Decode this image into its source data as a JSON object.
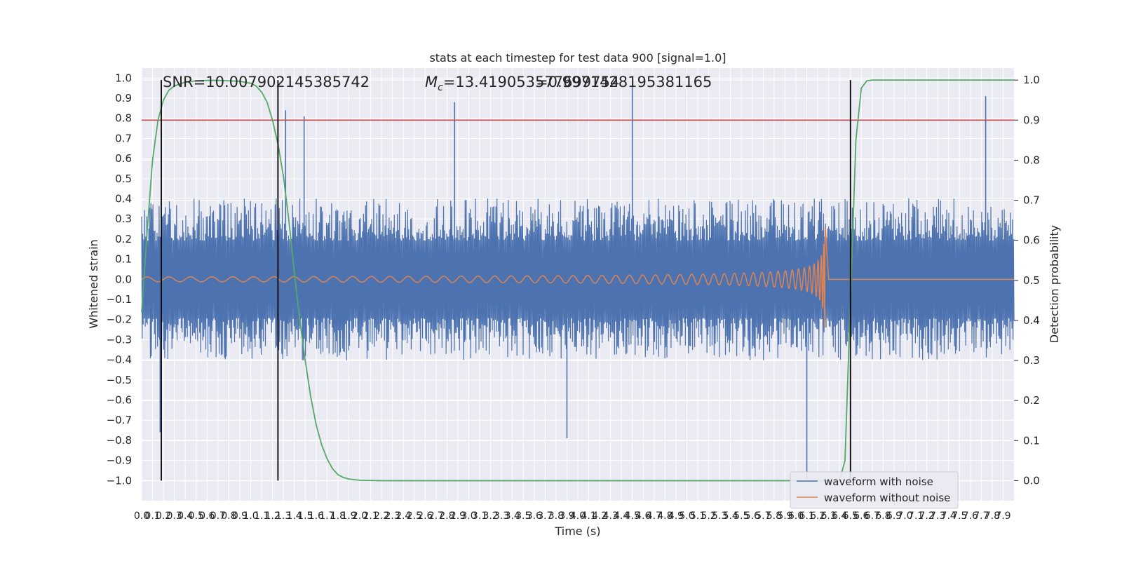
{
  "chart_data": {
    "type": "line",
    "title": "stats at each timestep for test data 900 [signal=1.0]",
    "xlabel": "Time (s)",
    "ylabel": "Whitened strain",
    "y2label": "Detection probability",
    "xlim": [
      0.0,
      8.0
    ],
    "ylim": [
      -1.1,
      1.05
    ],
    "y2lim": [
      -0.05,
      1.03
    ],
    "grid": true,
    "legend_position": "lower-right",
    "annotations": {
      "snr": "SNR=10.007902145385742",
      "mc_symbol": "M",
      "mc_sub": "c",
      "mc_value": "=13.419053577699754",
      "overlap": "=0.9971428195381165"
    },
    "y_ticks": [
      "1.0",
      "0.9",
      "0.8",
      "0.7",
      "0.6",
      "0.5",
      "0.4",
      "0.3",
      "0.2",
      "0.1",
      "0.0",
      "−0.1",
      "−0.2",
      "−0.3",
      "−0.4",
      "−0.5",
      "−0.6",
      "−0.7",
      "−0.8",
      "−0.9",
      "−1.0"
    ],
    "y2_ticks": [
      "1.0",
      "0.9",
      "0.8",
      "0.7",
      "0.6",
      "0.5",
      "0.4",
      "0.3",
      "0.2",
      "0.1",
      "0.0"
    ],
    "x_ticks": [
      "0.0",
      "0.1",
      "0.2",
      "0.3",
      "0.4",
      "0.5",
      "0.6",
      "0.7",
      "0.8",
      "0.9",
      "1.0",
      "1.1",
      "1.2",
      "1.3",
      "1.4",
      "1.5",
      "1.6",
      "1.7",
      "1.8",
      "1.9",
      "2.0",
      "2.1",
      "2.2",
      "2.3",
      "2.4",
      "2.5",
      "2.6",
      "2.7",
      "2.8",
      "2.9",
      "3.0",
      "3.1",
      "3.2",
      "3.3",
      "3.4",
      "3.5",
      "3.6",
      "3.7",
      "3.8",
      "3.9",
      "4.0",
      "4.1",
      "4.2",
      "4.3",
      "4.4",
      "4.5",
      "4.6",
      "4.7",
      "4.8",
      "4.9",
      "5.0",
      "5.1",
      "5.2",
      "5.3",
      "5.4",
      "5.5",
      "5.6",
      "5.7",
      "5.8",
      "5.9",
      "6.0",
      "6.1",
      "6.2",
      "6.3",
      "6.4",
      "6.5",
      "6.6",
      "6.7",
      "6.8",
      "6.9",
      "7.0",
      "7.1",
      "7.2",
      "7.3",
      "7.4",
      "7.5",
      "7.6",
      "7.7",
      "7.8",
      "7.9"
    ],
    "threshold": 0.9,
    "event_markers": [
      0.18,
      1.25,
      6.5
    ],
    "series": [
      {
        "name": "waveform with noise",
        "color": "#4c72b0",
        "noise_envelope": {
          "typical_abs": 0.35,
          "max": 0.96,
          "min": -0.99
        },
        "spikes": [
          {
            "x": 2.87,
            "y": 0.88
          },
          {
            "x": 1.32,
            "y": 0.84
          },
          {
            "x": 1.49,
            "y": 0.81
          },
          {
            "x": 4.5,
            "y": 0.96
          },
          {
            "x": 7.74,
            "y": 0.91
          },
          {
            "x": 6.1,
            "y": -0.99
          },
          {
            "x": 0.17,
            "y": -0.76
          },
          {
            "x": 3.9,
            "y": -0.79
          }
        ]
      },
      {
        "name": "waveform without noise",
        "color": "#dd8452",
        "chirp_peak_time": 6.27,
        "peak_amplitude": 0.44,
        "min_amplitude": -0.33,
        "start_amplitude": 0.012
      },
      {
        "name": "",
        "color": "#55a868",
        "axis": "right",
        "x": [
          0.0,
          0.05,
          0.1,
          0.15,
          0.2,
          0.25,
          0.3,
          0.35,
          0.4,
          0.5,
          0.6,
          0.7,
          0.8,
          0.9,
          1.0,
          1.05,
          1.1,
          1.15,
          1.2,
          1.25,
          1.3,
          1.35,
          1.4,
          1.45,
          1.5,
          1.55,
          1.6,
          1.65,
          1.7,
          1.75,
          1.8,
          1.85,
          1.9,
          2.0,
          2.2,
          3.0,
          4.0,
          5.0,
          6.0,
          6.4,
          6.45,
          6.5,
          6.55,
          6.6,
          6.65,
          6.7,
          7.0,
          8.0
        ],
        "y": [
          0.42,
          0.62,
          0.8,
          0.9,
          0.95,
          0.975,
          0.985,
          0.99,
          0.995,
          0.998,
          0.999,
          0.999,
          0.998,
          0.997,
          0.992,
          0.985,
          0.97,
          0.945,
          0.9,
          0.84,
          0.76,
          0.65,
          0.52,
          0.4,
          0.3,
          0.21,
          0.14,
          0.09,
          0.055,
          0.03,
          0.015,
          0.008,
          0.004,
          0.001,
          0.0,
          0.0,
          0.0,
          0.0,
          0.0,
          0.0,
          0.05,
          0.45,
          0.85,
          0.98,
          0.998,
          1.0,
          1.0,
          1.0
        ]
      }
    ]
  }
}
